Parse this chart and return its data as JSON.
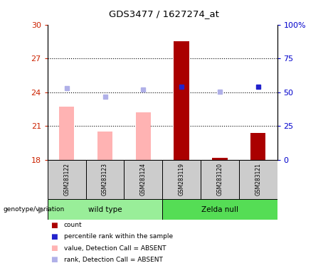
{
  "title": "GDS3477 / 1627274_at",
  "samples": [
    "GSM283122",
    "GSM283123",
    "GSM283124",
    "GSM283119",
    "GSM283120",
    "GSM283121"
  ],
  "ylim_left": [
    18,
    30
  ],
  "ylim_right": [
    0,
    100
  ],
  "yticks_left": [
    18,
    21,
    24,
    27,
    30
  ],
  "yticks_right": [
    0,
    25,
    50,
    75,
    100
  ],
  "ytick_labels_right": [
    "0",
    "25",
    "50",
    "75",
    "100%"
  ],
  "bar_values_absent": [
    22.7,
    20.5,
    22.2,
    null,
    null,
    null
  ],
  "rank_dots_absent": [
    24.35,
    23.6,
    24.25,
    null,
    24.05,
    null
  ],
  "bar_values_present": [
    null,
    null,
    null,
    28.55,
    18.15,
    20.35
  ],
  "rank_dots_present": [
    null,
    null,
    null,
    24.45,
    null,
    24.5
  ],
  "bar_color_absent": "#ffb3b3",
  "bar_color_present": "#aa0000",
  "rank_dot_absent": "#b0b0e8",
  "rank_dot_present": "#2222cc",
  "bar_width": 0.4,
  "bg_color": "#cccccc",
  "left_tick_color": "#cc2200",
  "right_tick_color": "#0000cc",
  "grid_dotted_yvals": [
    21,
    24,
    27
  ],
  "group1_label": "wild type",
  "group2_label": "Zelda null",
  "group1_color": "#99ee99",
  "group2_color": "#55dd55",
  "legend_items": [
    {
      "color": "#aa0000",
      "label": "count"
    },
    {
      "color": "#2222cc",
      "label": "percentile rank within the sample"
    },
    {
      "color": "#ffb3b3",
      "label": "value, Detection Call = ABSENT"
    },
    {
      "color": "#b0b0e8",
      "label": "rank, Detection Call = ABSENT"
    }
  ]
}
